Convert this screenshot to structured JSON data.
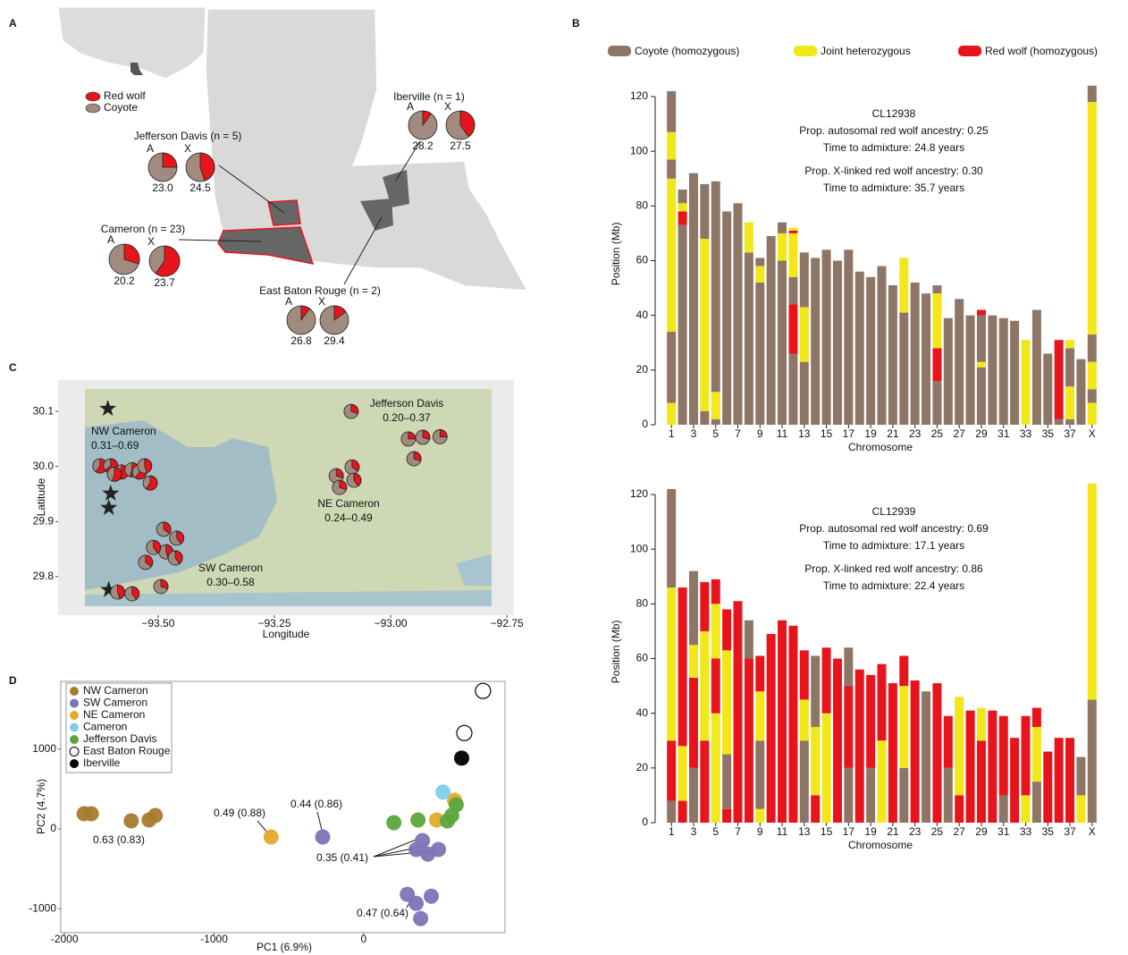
{
  "panel_labels": [
    "A",
    "B",
    "C",
    "D"
  ],
  "panel_a": {
    "legend": [
      {
        "name": "Red wolf",
        "color": "#e8141c"
      },
      {
        "name": "Coyote",
        "color": "#a08b7e"
      }
    ],
    "parishes": [
      {
        "name": "Jefferson Davis (n = 5)",
        "pies": [
          {
            "label": "A",
            "red": 0.25,
            "time": "23.0"
          },
          {
            "label": "X",
            "red": 0.45,
            "time": "24.5"
          }
        ]
      },
      {
        "name": "Cameron (n = 23)",
        "pies": [
          {
            "label": "A",
            "red": 0.3,
            "time": "20.2"
          },
          {
            "label": "X",
            "red": 0.6,
            "time": "23.7"
          }
        ]
      },
      {
        "name": "Iberville (n = 1)",
        "pies": [
          {
            "label": "A",
            "red": 0.1,
            "time": "28.2"
          },
          {
            "label": "X",
            "red": 0.4,
            "time": "27.5"
          }
        ]
      },
      {
        "name": "East Baton Rouge (n = 2)",
        "pies": [
          {
            "label": "A",
            "red": 0.1,
            "time": "26.8"
          },
          {
            "label": "X",
            "red": 0.15,
            "time": "29.4"
          }
        ]
      }
    ]
  },
  "chromosome_states": [
    {
      "name": "Coyote (homozygous)",
      "color": "#8e7667"
    },
    {
      "name": "Joint heterozygous",
      "color": "#f2e718"
    },
    {
      "name": "Red wolf (homozygous)",
      "color": "#e8141c"
    }
  ],
  "chart_data": [
    {
      "type": "pie-map",
      "xlabel": "Longitude",
      "ylabel": "Latitude",
      "xlim": [
        -93.715,
        -92.735
      ],
      "ylim": [
        29.73,
        30.157
      ],
      "xticks": [
        {
          "value": -93.5,
          "label": "−93.50"
        },
        {
          "value": -93.25,
          "label": "−93.25"
        },
        {
          "value": -93.0,
          "label": "−93.00"
        },
        {
          "value": -92.75,
          "label": "−92.75"
        }
      ],
      "yticks": [
        29.8,
        29.9,
        {
          "value": 30.0,
          "label": "30.0"
        },
        30.1
      ],
      "regions": [
        {
          "name": "NW Cameron",
          "range": "0.31–0.69"
        },
        {
          "name": "Jefferson Davis",
          "range": "0.20–0.37"
        },
        {
          "name": "NE Cameron",
          "range": "0.24–0.49"
        },
        {
          "name": "SW Cameron",
          "range": "0.30–0.58"
        }
      ],
      "sites": {
        "lon": [
          -93.625,
          -93.602,
          -93.579,
          -93.556,
          -93.54,
          -93.529,
          -93.517,
          -93.594,
          -93.488,
          -93.46,
          -93.483,
          -93.51,
          -93.527,
          -93.463,
          -93.494,
          -93.587,
          -93.556,
          -93.117,
          -93.083,
          -93.11,
          -93.079,
          -93.085,
          -92.962,
          -92.931,
          -92.894,
          -92.95
        ],
        "lat": [
          30.001,
          30.001,
          29.99,
          29.994,
          29.99,
          30.001,
          29.97,
          29.986,
          29.886,
          29.87,
          29.845,
          29.853,
          29.826,
          29.834,
          29.782,
          29.772,
          29.769,
          29.983,
          29.999,
          29.962,
          29.975,
          30.1,
          30.05,
          30.053,
          30.054,
          30.014
        ],
        "red": [
          0.6,
          0.65,
          0.5,
          0.55,
          0.6,
          0.45,
          0.6,
          0.55,
          0.35,
          0.4,
          0.45,
          0.4,
          0.35,
          0.4,
          0.3,
          0.45,
          0.4,
          0.3,
          0.35,
          0.3,
          0.4,
          0.3,
          0.25,
          0.3,
          0.25,
          0.3
        ]
      },
      "stars": {
        "lon": [
          -93.608,
          -93.602,
          -93.606,
          -93.606
        ],
        "lat": [
          30.105,
          29.951,
          29.925,
          29.776
        ]
      }
    },
    {
      "type": "chromosome",
      "title": "CL12938",
      "annotations": [
        "Prop. autosomal red wolf ancestry: 0.25",
        "Time to admixture: 24.8 years",
        "Prop. X-linked red wolf ancestry: 0.30",
        "Time to admixture: 35.7 years"
      ],
      "xlabel": "Chromosome",
      "ylabel": "Position (Mb)",
      "ylim": [
        0,
        125
      ],
      "yticks": [
        0,
        20,
        40,
        60,
        80,
        100,
        120
      ],
      "categories": [
        "1",
        null,
        "3",
        null,
        "5",
        null,
        "7",
        null,
        "9",
        null,
        "11",
        null,
        "13",
        null,
        "15",
        null,
        "17",
        null,
        "19",
        null,
        "21",
        null,
        "23",
        null,
        "25",
        null,
        "27",
        null,
        "29",
        null,
        "31",
        null,
        "33",
        null,
        "35",
        null,
        "37",
        null,
        "X"
      ],
      "tracts": [
        [
          [
            1,
            8
          ],
          [
            0,
            26
          ],
          [
            1,
            56
          ],
          [
            0,
            7
          ],
          [
            1,
            10
          ],
          [
            0,
            15
          ]
        ],
        [
          [
            0,
            73
          ],
          [
            2,
            5
          ],
          [
            1,
            3
          ],
          [
            0,
            5
          ]
        ],
        [
          [
            0,
            92
          ]
        ],
        [
          [
            0,
            5
          ],
          [
            1,
            63
          ],
          [
            0,
            20
          ]
        ],
        [
          [
            0,
            2
          ],
          [
            1,
            10
          ],
          [
            0,
            77
          ]
        ],
        [
          [
            0,
            78
          ]
        ],
        [
          [
            0,
            81
          ]
        ],
        [
          [
            0,
            63
          ],
          [
            1,
            11
          ]
        ],
        [
          [
            0,
            52
          ],
          [
            1,
            6
          ],
          [
            0,
            3
          ]
        ],
        [
          [
            0,
            69
          ]
        ],
        [
          [
            0,
            60
          ],
          [
            1,
            10
          ],
          [
            0,
            4
          ]
        ],
        [
          [
            0,
            26
          ],
          [
            2,
            18
          ],
          [
            0,
            10
          ],
          [
            1,
            16
          ],
          [
            2,
            1
          ],
          [
            1,
            1
          ]
        ],
        [
          [
            0,
            23
          ],
          [
            1,
            20
          ],
          [
            0,
            20
          ]
        ],
        [
          [
            0,
            61
          ]
        ],
        [
          [
            0,
            64
          ]
        ],
        [
          [
            0,
            60
          ]
        ],
        [
          [
            0,
            64
          ]
        ],
        [
          [
            0,
            56
          ]
        ],
        [
          [
            0,
            54
          ]
        ],
        [
          [
            0,
            58
          ]
        ],
        [
          [
            0,
            51
          ]
        ],
        [
          [
            0,
            41
          ],
          [
            1,
            20
          ]
        ],
        [
          [
            0,
            52
          ]
        ],
        [
          [
            0,
            48
          ]
        ],
        [
          [
            0,
            16
          ],
          [
            2,
            12
          ],
          [
            1,
            20
          ],
          [
            0,
            3
          ]
        ],
        [
          [
            0,
            39
          ]
        ],
        [
          [
            0,
            46
          ]
        ],
        [
          [
            0,
            40
          ]
        ],
        [
          [
            0,
            21
          ],
          [
            1,
            2
          ],
          [
            0,
            17
          ],
          [
            2,
            2
          ]
        ],
        [
          [
            0,
            40
          ]
        ],
        [
          [
            0,
            39
          ]
        ],
        [
          [
            0,
            38
          ]
        ],
        [
          [
            1,
            31
          ]
        ],
        [
          [
            0,
            42
          ]
        ],
        [
          [
            0,
            26
          ]
        ],
        [
          [
            0,
            2
          ],
          [
            2,
            29
          ]
        ],
        [
          [
            0,
            2
          ],
          [
            1,
            12
          ],
          [
            0,
            14
          ],
          [
            1,
            3
          ]
        ],
        [
          [
            0,
            24
          ]
        ],
        [
          [
            1,
            8
          ],
          [
            0,
            5
          ],
          [
            1,
            10
          ],
          [
            0,
            10
          ],
          [
            1,
            85
          ],
          [
            0,
            6
          ]
        ]
      ]
    },
    {
      "type": "chromosome",
      "title": "CL12939",
      "annotations": [
        "Prop. autosomal red wolf ancestry: 0.69",
        "Time to admixture: 17.1 years",
        "Prop. X-linked red wolf ancestry: 0.86",
        "Time to admixture: 22.4 years"
      ],
      "xlabel": "Chromosome",
      "ylabel": "Position (Mb)",
      "ylim": [
        0,
        125
      ],
      "yticks": [
        0,
        20,
        40,
        60,
        80,
        100,
        120
      ],
      "categories": [
        "1",
        null,
        "3",
        null,
        "5",
        null,
        "7",
        null,
        "9",
        null,
        "11",
        null,
        "13",
        null,
        "15",
        null,
        "17",
        null,
        "19",
        null,
        "21",
        null,
        "23",
        null,
        "25",
        null,
        "27",
        null,
        "29",
        null,
        "31",
        null,
        "33",
        null,
        "35",
        null,
        "37",
        null,
        "X"
      ],
      "tracts": [
        [
          [
            0,
            8
          ],
          [
            2,
            22
          ],
          [
            1,
            56
          ],
          [
            0,
            36
          ]
        ],
        [
          [
            2,
            8
          ],
          [
            1,
            20
          ],
          [
            2,
            58
          ]
        ],
        [
          [
            0,
            20
          ],
          [
            2,
            33
          ],
          [
            1,
            12
          ],
          [
            0,
            27
          ]
        ],
        [
          [
            2,
            30
          ],
          [
            1,
            40
          ],
          [
            2,
            18
          ]
        ],
        [
          [
            1,
            40
          ],
          [
            2,
            20
          ],
          [
            1,
            20
          ],
          [
            2,
            9
          ]
        ],
        [
          [
            2,
            5
          ],
          [
            0,
            20
          ],
          [
            1,
            38
          ],
          [
            2,
            15
          ]
        ],
        [
          [
            2,
            81
          ]
        ],
        [
          [
            2,
            60
          ],
          [
            0,
            14
          ]
        ],
        [
          [
            1,
            5
          ],
          [
            0,
            25
          ],
          [
            1,
            18
          ],
          [
            2,
            13
          ]
        ],
        [
          [
            2,
            69
          ]
        ],
        [
          [
            2,
            74
          ]
        ],
        [
          [
            2,
            72
          ]
        ],
        [
          [
            0,
            30
          ],
          [
            1,
            15
          ],
          [
            2,
            18
          ]
        ],
        [
          [
            2,
            10
          ],
          [
            1,
            25
          ],
          [
            0,
            26
          ]
        ],
        [
          [
            1,
            40
          ],
          [
            2,
            24
          ]
        ],
        [
          [
            2,
            60
          ]
        ],
        [
          [
            0,
            20
          ],
          [
            2,
            30
          ],
          [
            0,
            14
          ]
        ],
        [
          [
            2,
            56
          ]
        ],
        [
          [
            0,
            20
          ],
          [
            2,
            34
          ]
        ],
        [
          [
            1,
            30
          ],
          [
            2,
            28
          ]
        ],
        [
          [
            2,
            51
          ]
        ],
        [
          [
            0,
            20
          ],
          [
            1,
            30
          ],
          [
            2,
            11
          ]
        ],
        [
          [
            2,
            52
          ]
        ],
        [
          [
            0,
            48
          ]
        ],
        [
          [
            2,
            51
          ]
        ],
        [
          [
            0,
            20
          ],
          [
            2,
            19
          ]
        ],
        [
          [
            2,
            10
          ],
          [
            1,
            36
          ]
        ],
        [
          [
            2,
            41
          ]
        ],
        [
          [
            2,
            30
          ],
          [
            1,
            12
          ]
        ],
        [
          [
            2,
            41
          ]
        ],
        [
          [
            0,
            10
          ],
          [
            2,
            29
          ]
        ],
        [
          [
            2,
            31
          ]
        ],
        [
          [
            1,
            10
          ],
          [
            2,
            29
          ]
        ],
        [
          [
            0,
            15
          ],
          [
            1,
            20
          ],
          [
            2,
            7
          ]
        ],
        [
          [
            2,
            26
          ]
        ],
        [
          [
            2,
            31
          ]
        ],
        [
          [
            2,
            31
          ]
        ],
        [
          [
            1,
            10
          ],
          [
            0,
            14
          ]
        ],
        [
          [
            0,
            45
          ],
          [
            1,
            79
          ]
        ]
      ]
    },
    {
      "type": "scatter",
      "xlabel": "PC1 (6.9%)",
      "ylabel": "PC2 (4.7%)",
      "xlim": [
        -2025,
        945
      ],
      "ylim": [
        -1300,
        1850
      ],
      "xticks": [
        -2000,
        -1000,
        0
      ],
      "yticks": [
        -1000,
        0,
        1000
      ],
      "series": [
        {
          "name": "NW Cameron",
          "color": "#a87b2c",
          "marker": "filled",
          "x": [
            -1869,
            -1821,
            -1554,
            -1435,
            -1393
          ],
          "y": [
            191,
            191,
            101,
            112,
            169
          ]
        },
        {
          "name": "SW Cameron",
          "color": "#7d74b6",
          "marker": "filled",
          "x": [
            -274,
            351,
            429,
            500,
            292,
            351,
            381,
            452,
            393
          ],
          "y": [
            -101,
            -258,
            -315,
            -258,
            -820,
            -933,
            -1124,
            -843,
            -146
          ]
        },
        {
          "name": "NE Cameron",
          "color": "#e3aa2c",
          "marker": "filled",
          "x": [
            -619,
            488,
            607
          ],
          "y": [
            -101,
            112,
            360
          ]
        },
        {
          "name": "Cameron",
          "color": "#7ed0ea",
          "marker": "filled",
          "x": [
            530
          ],
          "y": [
            461
          ]
        },
        {
          "name": "Jefferson Davis",
          "color": "#5aa63c",
          "marker": "filled",
          "x": [
            202,
            363,
            560,
            619,
            589
          ],
          "y": [
            79,
            112,
            101,
            303,
            169
          ]
        },
        {
          "name": "East Baton Rouge",
          "color": "#ffffff",
          "marker": "open",
          "x": [
            798,
            673
          ],
          "y": [
            1730,
            1202
          ]
        },
        {
          "name": "Iberville",
          "color": "#000000",
          "marker": "filled",
          "x": [
            655
          ],
          "y": [
            888
          ]
        }
      ],
      "annotations": [
        "0.63 (0.83)",
        "0.49 (0.88)",
        "0.44 (0.86)",
        "0.35 (0.41)",
        "0.47 (0.64)"
      ]
    }
  ]
}
